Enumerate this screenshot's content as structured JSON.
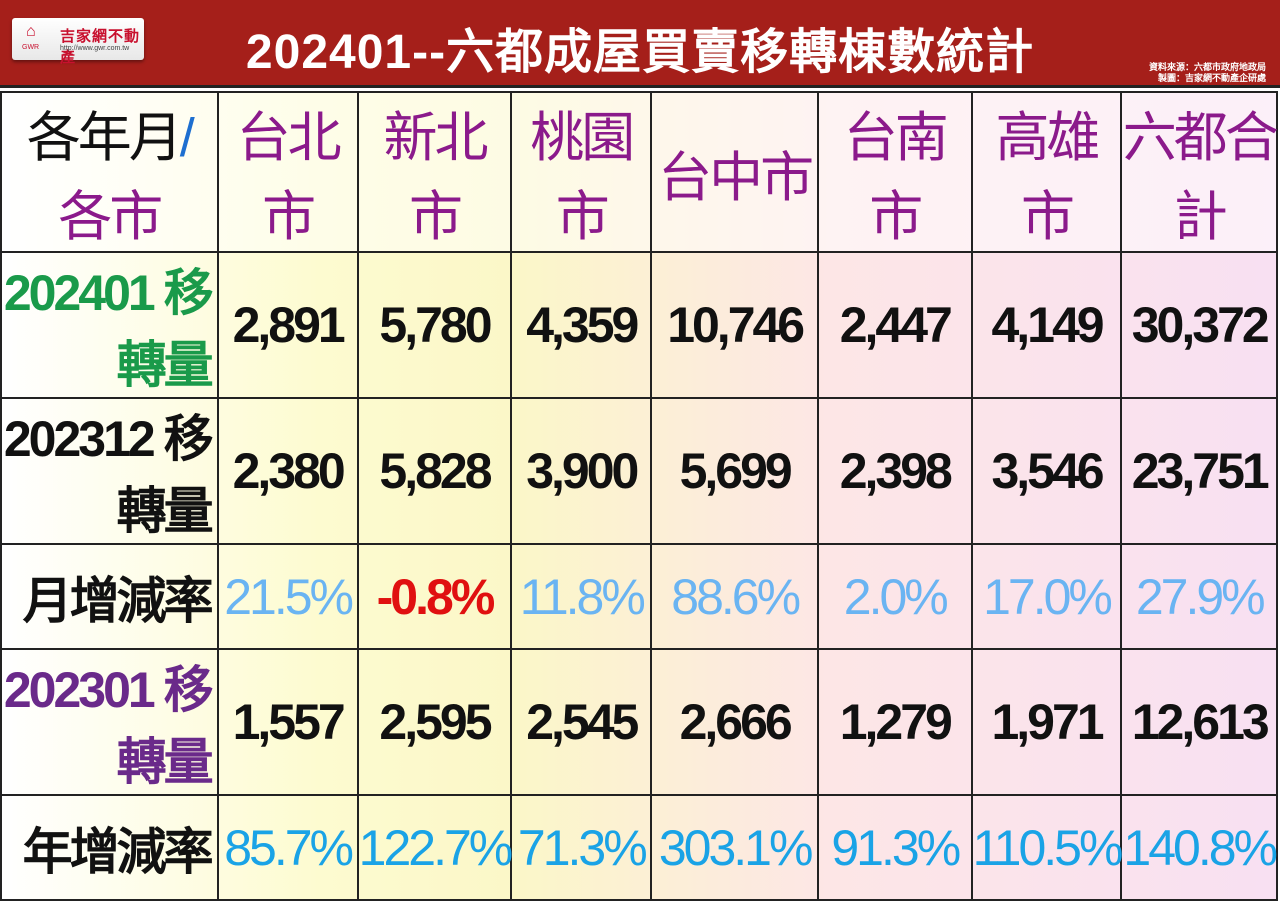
{
  "header": {
    "title": "202401--六都成屋買賣移轉棟數統計",
    "logo_name": "吉家網不動產",
    "logo_url": "http://www.gwr.com.tw",
    "logo_mark": "GWR",
    "source": "資料來源：六都市政府地政局",
    "made_by": "製圖：吉家網不動產企研處",
    "bg_color": "#a51f1a"
  },
  "chart_data": {
    "type": "table",
    "corner": {
      "left": "各年月",
      "sep": "/",
      "right": "各市"
    },
    "columns": [
      "台北市",
      "新北市",
      "桃園市",
      "台中市",
      "台南市",
      "高雄市",
      "六都合計"
    ],
    "rows": [
      {
        "label": "202401 移轉量",
        "values": [
          "2,891",
          "5,780",
          "4,359",
          "10,746",
          "2,447",
          "4,149",
          "30,372"
        ]
      },
      {
        "label": "202312 移轉量",
        "values": [
          "2,380",
          "5,828",
          "3,900",
          "5,699",
          "2,398",
          "3,546",
          "23,751"
        ]
      },
      {
        "label": "月增減率",
        "values": [
          "21.5%",
          "-0.8%",
          "11.8%",
          "88.6%",
          "2.0%",
          "17.0%",
          "27.9%"
        ]
      },
      {
        "label": "202301 移轉量",
        "values": [
          "1,557",
          "2,595",
          "2,545",
          "2,666",
          "1,279",
          "1,971",
          "12,613"
        ]
      },
      {
        "label": "年增減率",
        "values": [
          "85.7%",
          "122.7%",
          "71.3%",
          "303.1%",
          "91.3%",
          "110.5%",
          "140.8%"
        ]
      }
    ],
    "colors": {
      "header_text": "#8b1a8b",
      "row_202401": "#1a9a4a",
      "row_202301": "#6a2a8a",
      "percent": "#6ab4f2",
      "negative": "#e01010",
      "year_percent": "#1aa3e6"
    }
  }
}
